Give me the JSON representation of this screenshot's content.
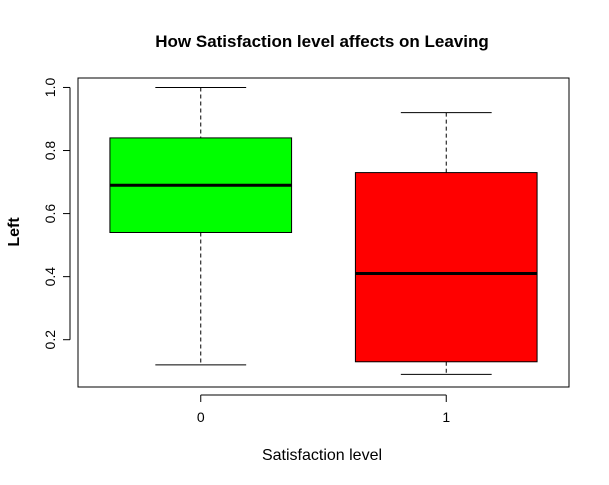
{
  "chart_data": {
    "type": "boxplot",
    "title": "How Satisfaction level affects on Leaving",
    "xlabel": "Satisfaction level",
    "ylabel": "Left",
    "categories": [
      "0",
      "1"
    ],
    "boxes": [
      {
        "category": "0",
        "min": 0.12,
        "q1": 0.54,
        "median": 0.69,
        "q3": 0.84,
        "max": 1.0,
        "color": "#00ff00"
      },
      {
        "category": "1",
        "min": 0.09,
        "q1": 0.13,
        "median": 0.41,
        "q3": 0.73,
        "max": 0.92,
        "color": "#ff0000"
      }
    ],
    "ylim": [
      0.05,
      1.03
    ],
    "yticks": [
      0.2,
      0.4,
      0.6,
      0.8,
      1.0
    ],
    "ytick_labels": [
      "0.2",
      "0.4",
      "0.6",
      "0.8",
      "1.0"
    ],
    "grid": false,
    "legend": "none"
  }
}
